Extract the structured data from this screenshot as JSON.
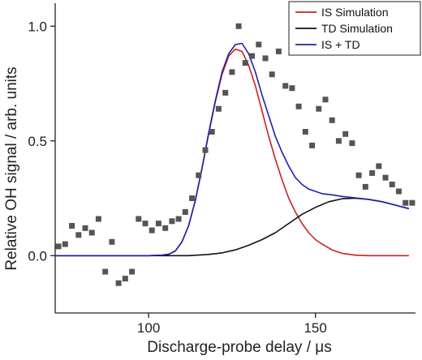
{
  "chart_data": {
    "type": "scatter",
    "title": "",
    "xlabel": "Discharge-probe delay / μs",
    "ylabel": "Relative OH signal / arb. units",
    "xlim": [
      72,
      180
    ],
    "ylim": [
      -0.25,
      1.1
    ],
    "xticks": [
      100,
      150
    ],
    "xtick_labels": [
      "100",
      "150"
    ],
    "yticks": [
      0.0,
      0.5,
      1.0
    ],
    "ytick_labels": [
      "0.0",
      "0.5",
      "1.0"
    ],
    "grid": false,
    "legend_position": "top-right",
    "scatter": {
      "color": "#555555",
      "points": [
        [
          73,
          0.04
        ],
        [
          75,
          0.05
        ],
        [
          77,
          0.13
        ],
        [
          79,
          0.09
        ],
        [
          81,
          0.12
        ],
        [
          83,
          0.1
        ],
        [
          85,
          0.16
        ],
        [
          87,
          -0.07
        ],
        [
          89,
          0.06
        ],
        [
          91,
          -0.12
        ],
        [
          93,
          -0.1
        ],
        [
          95,
          -0.07
        ],
        [
          97,
          0.16
        ],
        [
          99,
          0.14
        ],
        [
          101,
          0.11
        ],
        [
          103,
          0.14
        ],
        [
          105,
          0.12
        ],
        [
          107,
          0.15
        ],
        [
          109,
          0.16
        ],
        [
          111,
          0.19
        ],
        [
          113,
          0.25
        ],
        [
          115,
          0.35
        ],
        [
          117,
          0.46
        ],
        [
          119,
          0.54
        ],
        [
          121,
          0.64
        ],
        [
          123,
          0.71
        ],
        [
          125,
          0.8
        ],
        [
          127,
          1.0
        ],
        [
          129,
          0.84
        ],
        [
          131,
          0.87
        ],
        [
          133,
          0.92
        ],
        [
          135,
          0.86
        ],
        [
          137,
          0.79
        ],
        [
          139,
          0.89
        ],
        [
          141,
          0.74
        ],
        [
          143,
          0.73
        ],
        [
          145,
          0.65
        ],
        [
          147,
          0.54
        ],
        [
          149,
          0.48
        ],
        [
          151,
          0.64
        ],
        [
          153,
          0.68
        ],
        [
          155,
          0.59
        ],
        [
          157,
          0.5
        ],
        [
          159,
          0.53
        ],
        [
          161,
          0.49
        ],
        [
          163,
          0.35
        ],
        [
          165,
          0.3
        ],
        [
          167,
          0.36
        ],
        [
          169,
          0.39
        ],
        [
          171,
          0.34
        ],
        [
          173,
          0.31
        ],
        [
          175,
          0.28
        ],
        [
          177,
          0.23
        ],
        [
          179,
          0.23
        ]
      ]
    },
    "series": [
      {
        "name": "IS Simulation",
        "color": "#cc2020",
        "points": [
          [
            72,
            0.0
          ],
          [
            100,
            0.0
          ],
          [
            104,
            0.002
          ],
          [
            106,
            0.006
          ],
          [
            108,
            0.02
          ],
          [
            110,
            0.06
          ],
          [
            112,
            0.13
          ],
          [
            114,
            0.24
          ],
          [
            116,
            0.38
          ],
          [
            118,
            0.53
          ],
          [
            120,
            0.67
          ],
          [
            122,
            0.79
          ],
          [
            124,
            0.87
          ],
          [
            126,
            0.9
          ],
          [
            128,
            0.89
          ],
          [
            130,
            0.83
          ],
          [
            132,
            0.74
          ],
          [
            134,
            0.63
          ],
          [
            136,
            0.52
          ],
          [
            138,
            0.42
          ],
          [
            140,
            0.33
          ],
          [
            142,
            0.25
          ],
          [
            144,
            0.19
          ],
          [
            146,
            0.14
          ],
          [
            148,
            0.1
          ],
          [
            150,
            0.07
          ],
          [
            152,
            0.05
          ],
          [
            155,
            0.025
          ],
          [
            158,
            0.01
          ],
          [
            162,
            0.002
          ],
          [
            166,
            0.0
          ],
          [
            178,
            0.0
          ]
        ]
      },
      {
        "name": "TD Simulation",
        "color": "#111111",
        "points": [
          [
            72,
            0.0
          ],
          [
            112,
            0.0
          ],
          [
            118,
            0.005
          ],
          [
            122,
            0.012
          ],
          [
            126,
            0.025
          ],
          [
            130,
            0.045
          ],
          [
            134,
            0.07
          ],
          [
            138,
            0.1
          ],
          [
            142,
            0.14
          ],
          [
            146,
            0.18
          ],
          [
            150,
            0.21
          ],
          [
            154,
            0.235
          ],
          [
            158,
            0.248
          ],
          [
            162,
            0.25
          ],
          [
            166,
            0.245
          ],
          [
            170,
            0.235
          ],
          [
            174,
            0.22
          ],
          [
            178,
            0.205
          ]
        ]
      },
      {
        "name": "IS + TD",
        "color": "#2020b0",
        "points": [
          [
            72,
            0.0
          ],
          [
            100,
            0.0
          ],
          [
            104,
            0.002
          ],
          [
            106,
            0.006
          ],
          [
            108,
            0.02
          ],
          [
            110,
            0.06
          ],
          [
            112,
            0.13
          ],
          [
            114,
            0.24
          ],
          [
            116,
            0.38
          ],
          [
            118,
            0.535
          ],
          [
            120,
            0.675
          ],
          [
            122,
            0.8
          ],
          [
            124,
            0.88
          ],
          [
            126,
            0.92
          ],
          [
            128,
            0.925
          ],
          [
            130,
            0.88
          ],
          [
            132,
            0.8
          ],
          [
            134,
            0.7
          ],
          [
            136,
            0.61
          ],
          [
            138,
            0.52
          ],
          [
            140,
            0.45
          ],
          [
            142,
            0.39
          ],
          [
            144,
            0.34
          ],
          [
            146,
            0.31
          ],
          [
            148,
            0.29
          ],
          [
            150,
            0.28
          ],
          [
            152,
            0.27
          ],
          [
            155,
            0.265
          ],
          [
            158,
            0.258
          ],
          [
            162,
            0.252
          ],
          [
            166,
            0.245
          ],
          [
            170,
            0.235
          ],
          [
            174,
            0.22
          ],
          [
            178,
            0.205
          ]
        ]
      }
    ]
  }
}
